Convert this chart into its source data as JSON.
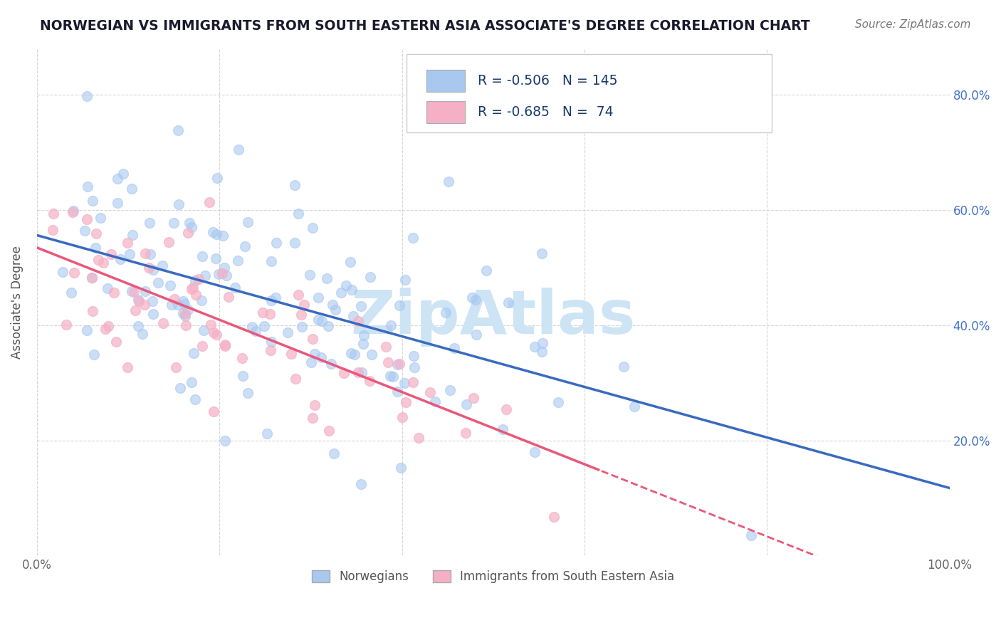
{
  "title": "NORWEGIAN VS IMMIGRANTS FROM SOUTH EASTERN ASIA ASSOCIATE'S DEGREE CORRELATION CHART",
  "source_text": "Source: ZipAtlas.com",
  "ylabel": "Associate's Degree",
  "xlim": [
    0.0,
    1.0
  ],
  "ylim": [
    0.0,
    0.88
  ],
  "x_ticks": [
    0.0,
    0.2,
    0.4,
    0.6,
    0.8,
    1.0
  ],
  "x_tick_labels": [
    "0.0%",
    "",
    "",
    "",
    "",
    "100.0%"
  ],
  "y_ticks": [
    0.0,
    0.2,
    0.4,
    0.6,
    0.8
  ],
  "y_tick_labels_right": [
    "",
    "20.0%",
    "40.0%",
    "60.0%",
    "80.0%"
  ],
  "background_color": "#ffffff",
  "grid_color": "#cccccc",
  "watermark_text": "ZipAtlas",
  "watermark_color": "#cde4f5",
  "blue_scatter_color": "#a8c8f0",
  "pink_scatter_color": "#f5b0c5",
  "blue_line_color": "#3a6abf",
  "pink_line_color": "#e8587a",
  "legend_label1": "Norwegians",
  "legend_label2": "Immigrants from South Eastern Asia",
  "R1": -0.506,
  "N1": 145,
  "R2": -0.685,
  "N2": 74,
  "title_color": "#1a1a2e",
  "right_axis_color": "#4472c4",
  "legend_text_color": "#1a3a6b",
  "seed": 42
}
